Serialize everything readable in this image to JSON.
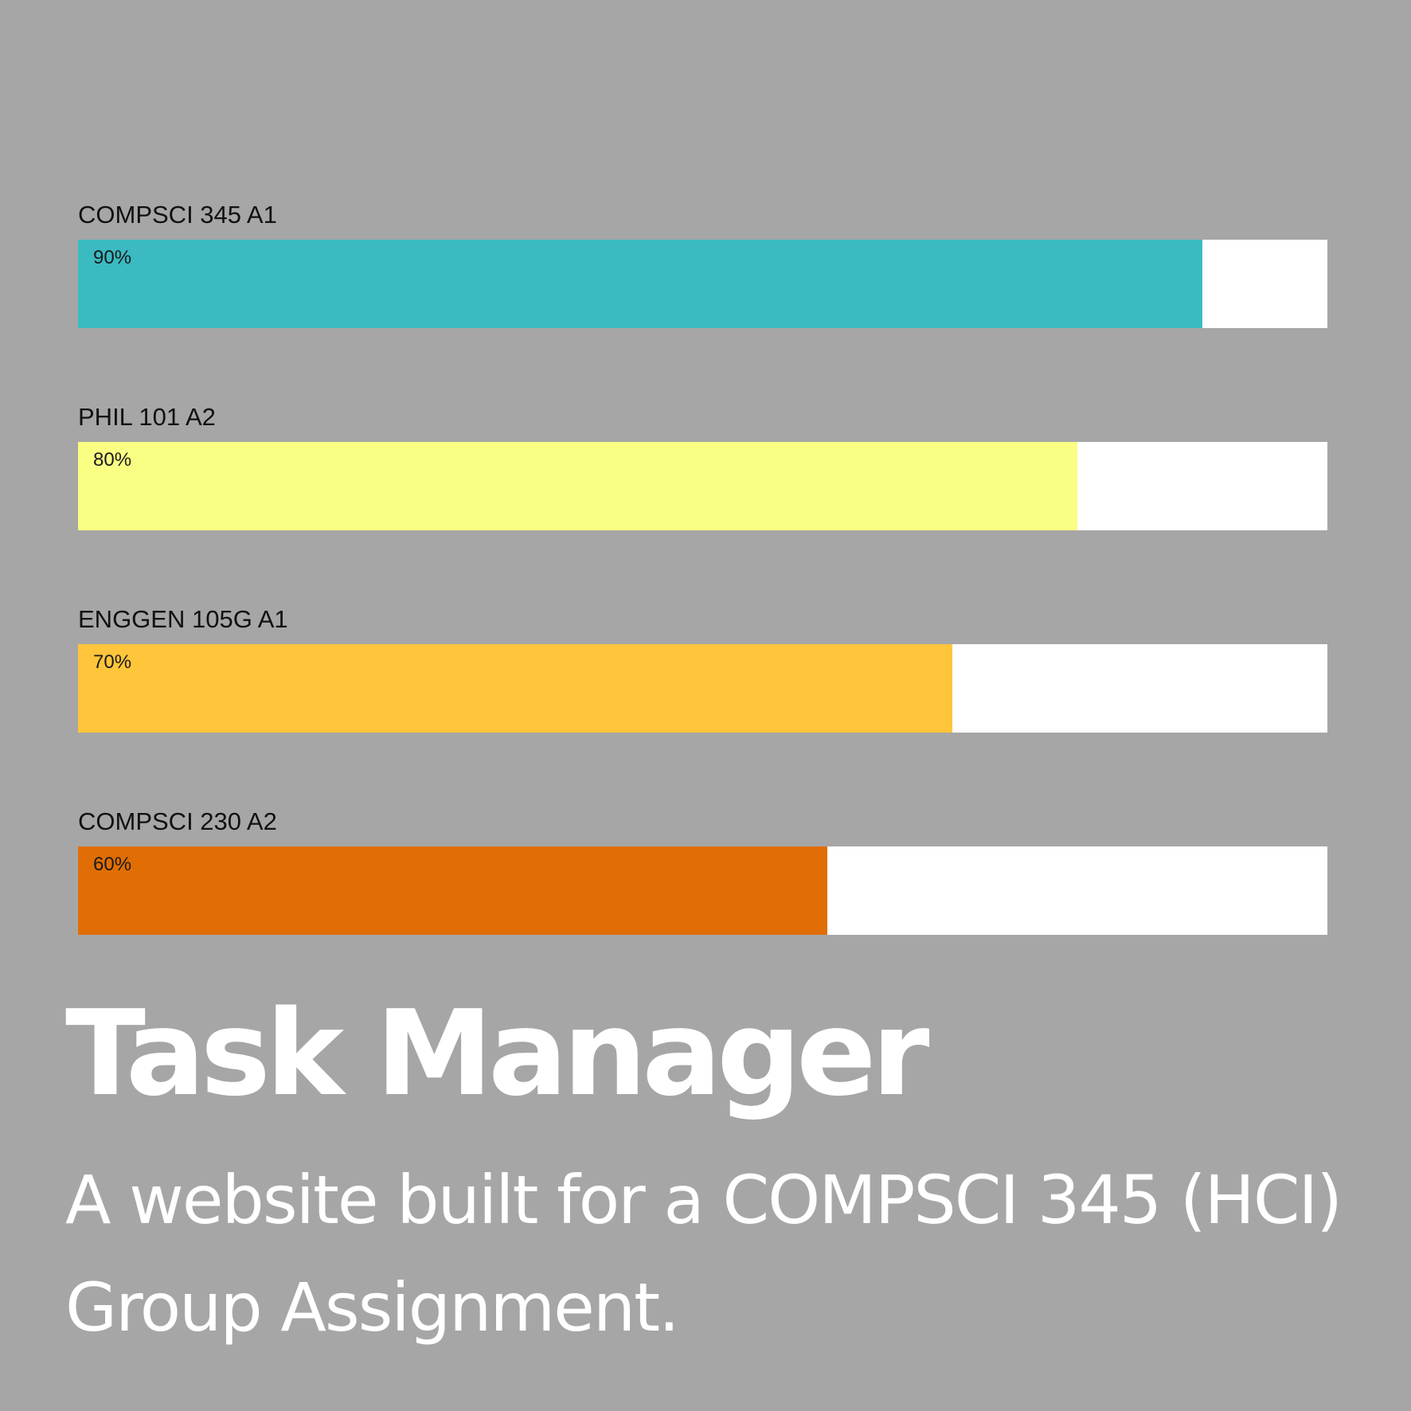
{
  "tasks": [
    {
      "name": "COMPSCI 345 A1",
      "progress": 90,
      "progress_label": "90%",
      "color": "#3bbac1"
    },
    {
      "name": "PHIL 101 A2",
      "progress": 80,
      "progress_label": "80%",
      "color": "#f9ff83"
    },
    {
      "name": "ENGGEN 105G A1",
      "progress": 70,
      "progress_label": "70%",
      "color": "#ffc53b"
    },
    {
      "name": "COMPSCI 230 A2",
      "progress": 60,
      "progress_label": "60%",
      "color": "#e06e05"
    }
  ],
  "title": "Task Manager",
  "subtitle": "A website built for a COMPSCI 345 (HCI) Group Assignment."
}
